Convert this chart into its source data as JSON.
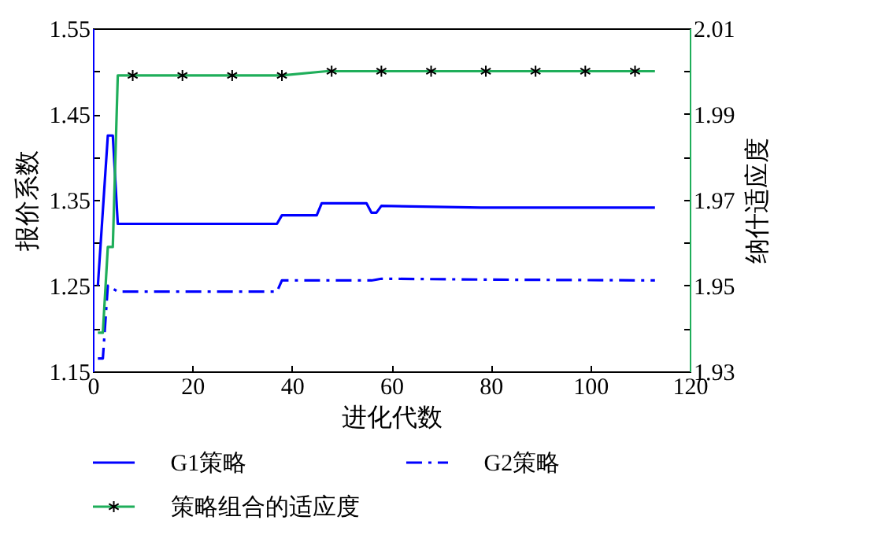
{
  "chart_data": {
    "type": "line",
    "xlabel": "进化代数",
    "ylabel": "报价系数",
    "y2label": "纳什适应度",
    "xlim": [
      0,
      120
    ],
    "xticks": [
      0,
      20,
      40,
      60,
      80,
      100,
      120
    ],
    "ylim": [
      1.15,
      1.55
    ],
    "yticks": [
      1.15,
      {
        "value": 1.2,
        "label": null
      },
      1.25,
      {
        "value": 1.3,
        "label": null
      },
      1.35,
      {
        "value": 1.4,
        "label": null
      },
      1.45,
      {
        "value": 1.5,
        "label": null
      },
      1.55
    ],
    "y2lim": [
      1.93,
      2.01
    ],
    "y2ticks": [
      1.93,
      {
        "value": 1.94,
        "label": null
      },
      1.95,
      {
        "value": 1.96,
        "label": null
      },
      1.97,
      {
        "value": 1.98,
        "label": null
      },
      1.99,
      {
        "value": 2.0,
        "label": null
      },
      2.01
    ],
    "grid": false,
    "legend": "bottom",
    "marker": "none",
    "series": [
      {
        "name": "G1策略",
        "color": "#0000ff",
        "line_style": "solid",
        "x": [
          1,
          3,
          4,
          5,
          37,
          38,
          45,
          46,
          55,
          56,
          57,
          58,
          78,
          113
        ],
        "values": [
          1.25,
          1.425,
          1.425,
          1.322,
          1.322,
          1.332,
          1.332,
          1.346,
          1.346,
          1.335,
          1.335,
          1.343,
          1.341,
          1.341
        ]
      },
      {
        "name": "G2策略",
        "color": "#0000ff",
        "line_style": "dashed",
        "x": [
          1,
          2,
          3,
          5,
          37,
          38,
          56,
          58,
          80,
          113
        ],
        "values": [
          1.165,
          1.165,
          1.25,
          1.243,
          1.243,
          1.256,
          1.256,
          1.258,
          1.257,
          1.256
        ]
      },
      {
        "name": "策略组合的适应度",
        "color": "#1fae5a",
        "line_style": "solid",
        "axis": "y2",
        "x": [
          1,
          2,
          3,
          4,
          5,
          38,
          47,
          113
        ],
        "values": [
          1.939,
          1.939,
          1.959,
          1.959,
          1.999,
          1.999,
          2.0,
          2.0
        ]
      },
      {
        "type": "scatter",
        "marker": "cross",
        "color": "#000000",
        "axis": "y2",
        "x": [
          8,
          18,
          28,
          38,
          48,
          58,
          68,
          79,
          89,
          99,
          109
        ],
        "values": [
          1.999,
          1.999,
          1.999,
          1.999,
          2.0,
          2.0,
          2.0,
          2.0,
          2.0,
          2.0,
          2.0
        ]
      }
    ]
  }
}
